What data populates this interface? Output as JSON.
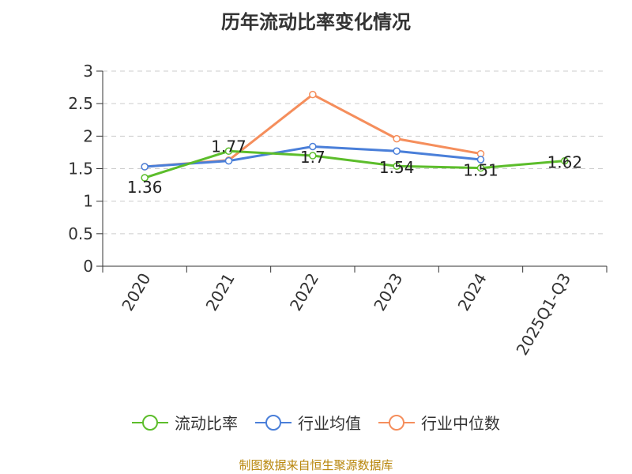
{
  "title": "历年流动比率变化情况",
  "source": "制图数据来自恒生聚源数据库",
  "chart_data": {
    "type": "line",
    "title": "历年流动比率变化情况",
    "categories": [
      "2020",
      "2021",
      "2022",
      "2023",
      "2024",
      "2025Q1-Q3"
    ],
    "ylim": [
      0,
      3
    ],
    "yticks": [
      "0",
      "0.5",
      "1",
      "1.5",
      "2",
      "2.5",
      "3"
    ],
    "grid": true,
    "legend_position": "bottom",
    "series": [
      {
        "name": "流动比率",
        "color": "#5cbd2b",
        "values": [
          1.36,
          1.77,
          1.7,
          1.54,
          1.51,
          1.62
        ],
        "labels": [
          "1.36",
          "1.77",
          "1.7",
          "1.54",
          "1.51",
          "1.62"
        ]
      },
      {
        "name": "行业均值",
        "color": "#4a7fd9",
        "values": [
          1.53,
          1.62,
          1.84,
          1.77,
          1.64,
          null
        ],
        "labels": []
      },
      {
        "name": "行业中位数",
        "color": "#f58e5c",
        "values": [
          1.53,
          1.63,
          2.64,
          1.96,
          1.73,
          null
        ],
        "labels": []
      }
    ]
  }
}
